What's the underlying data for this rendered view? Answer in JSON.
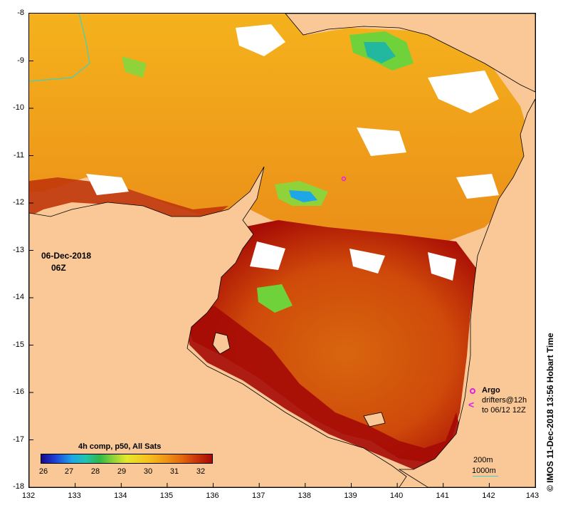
{
  "map": {
    "x_ticks": [
      "132",
      "133",
      "134",
      "135",
      "136",
      "137",
      "138",
      "139",
      "140",
      "141",
      "142",
      "143"
    ],
    "y_ticks": [
      "-8",
      "-9",
      "-10",
      "-11",
      "-12",
      "-13",
      "-14",
      "-15",
      "-16",
      "-17",
      "-18"
    ],
    "date": "06-Dec-2018",
    "time": "06Z",
    "colors": {
      "land": "#f9c896",
      "cloud": "#ffffff",
      "warm": "#a50a05",
      "mid": "#e8901a",
      "cool": "#6fd23a"
    }
  },
  "colorbar": {
    "title": "4h comp, p50, All Sats",
    "ticks": [
      "26",
      "27",
      "28",
      "29",
      "30",
      "31",
      "32"
    ]
  },
  "legend": {
    "argo": "Argo",
    "drifters": "drifters@12h",
    "drifters_sub": "to 06/12 12Z",
    "depth_200": "200m",
    "depth_1000": "1000m"
  },
  "credit": "© IMOS 11-Dec-2018 13:56 Hobart Time"
}
